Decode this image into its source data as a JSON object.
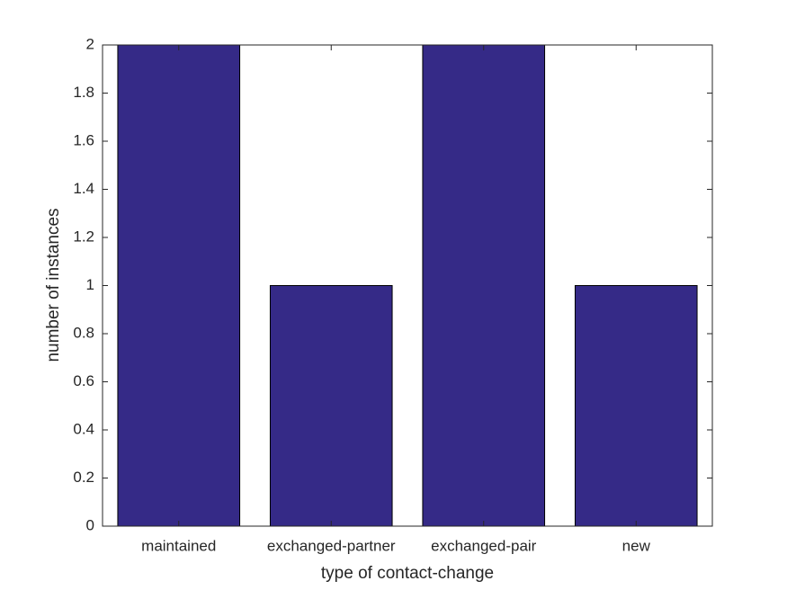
{
  "chart_data": {
    "type": "bar",
    "xlabel": "type of contact-change",
    "ylabel": "number of instances",
    "categories": [
      "maintained",
      "exchanged-partner",
      "exchanged-pair",
      "new"
    ],
    "values": [
      2,
      1,
      2,
      1
    ],
    "color": "#352a87",
    "ylim": [
      0,
      2
    ],
    "yticks": [
      0,
      0.2,
      0.4,
      0.6,
      0.8,
      1,
      1.2,
      1.4,
      1.6,
      1.8,
      2
    ],
    "grid": false
  }
}
